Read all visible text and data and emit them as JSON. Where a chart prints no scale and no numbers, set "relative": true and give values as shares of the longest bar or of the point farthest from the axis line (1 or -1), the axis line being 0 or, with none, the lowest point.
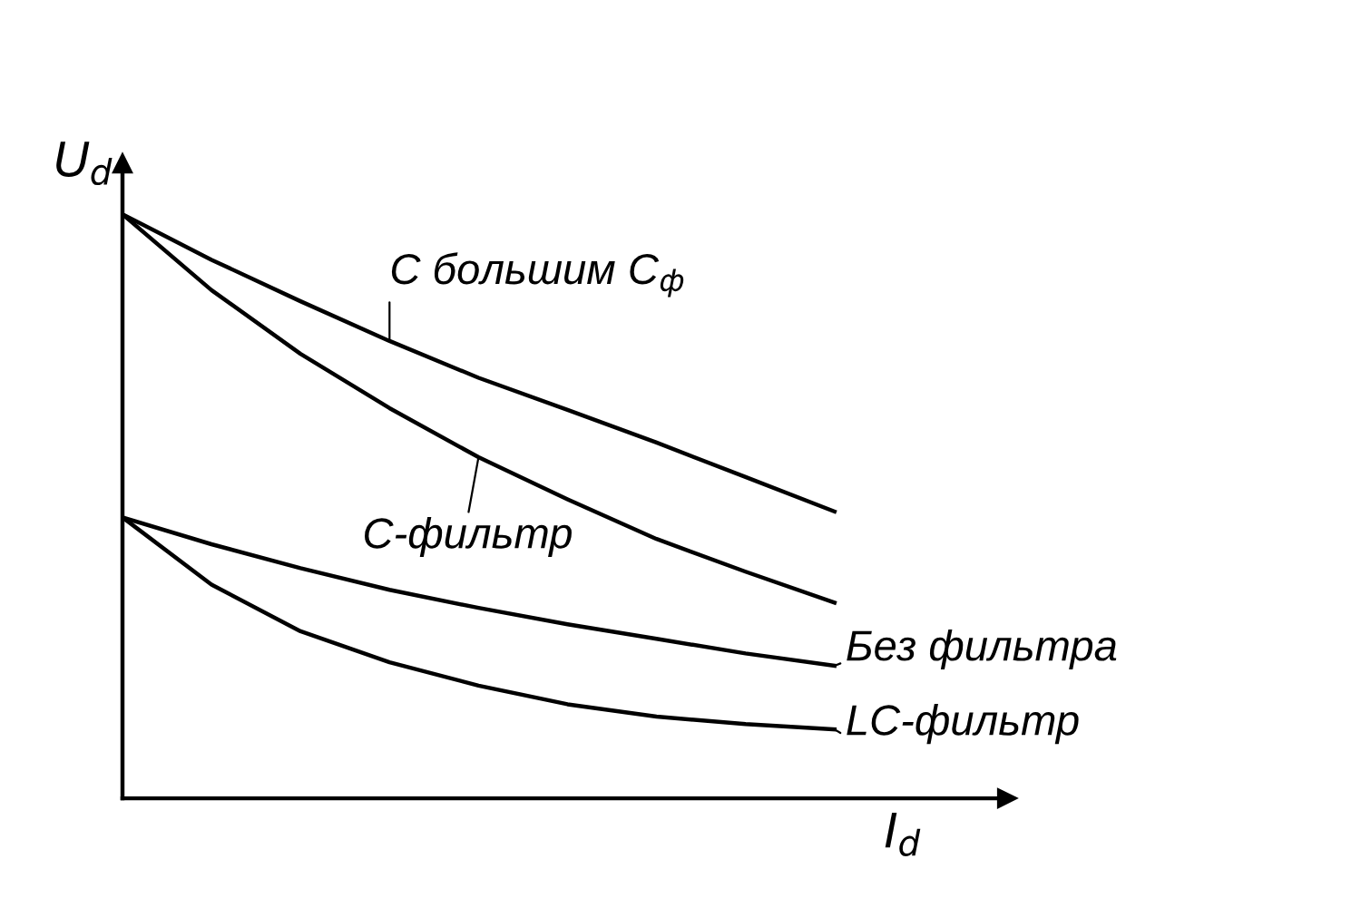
{
  "chart_data": {
    "type": "line",
    "relative": true,
    "xlabel": "I$_{d}$",
    "ylabel": "U$_{d}$",
    "categories": [
      null,
      null,
      null,
      null,
      null,
      null,
      null,
      null,
      null
    ],
    "marker": "none",
    "line_style": "solid",
    "series": [
      {
        "name": "С большим С$_{ф}$",
        "color": "#000000",
        "values": [
          1.0,
          0.922,
          0.851,
          0.783,
          0.72,
          0.665,
          0.609,
          0.55,
          0.491
        ]
      },
      {
        "name": "С-фильтр",
        "color": "#000000",
        "values": [
          1.0,
          0.87,
          0.761,
          0.668,
          0.584,
          0.512,
          0.444,
          0.388,
          0.335
        ]
      },
      {
        "name": "Без фильтра",
        "color": "#000000",
        "values": [
          0.481,
          0.435,
          0.394,
          0.357,
          0.326,
          0.298,
          0.273,
          0.248,
          0.227
        ]
      },
      {
        "name": "LC-фильтр",
        "color": "#000000",
        "values": [
          0.481,
          0.366,
          0.286,
          0.233,
          0.193,
          0.161,
          0.14,
          0.127,
          0.118
        ]
      }
    ]
  }
}
